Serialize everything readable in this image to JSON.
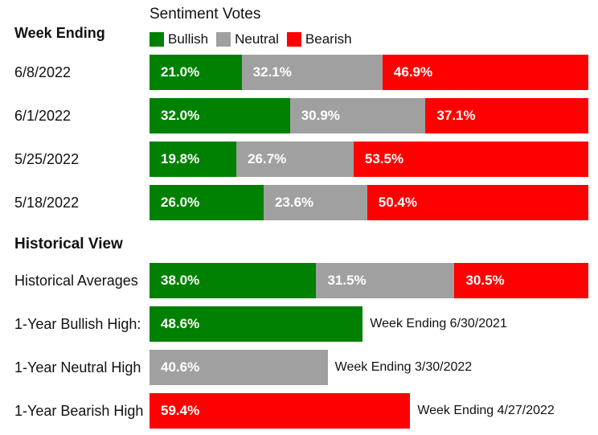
{
  "header": {
    "title": "Sentiment Votes",
    "week_heading": "Week Ending",
    "historical_heading": "Historical View"
  },
  "colors": {
    "bullish": "#008000",
    "neutral": "#a0a0a0",
    "bearish": "#ff0000"
  },
  "legend": [
    {
      "label": "Bullish",
      "color": "#008000"
    },
    {
      "label": "Neutral",
      "color": "#a0a0a0"
    },
    {
      "label": "Bearish",
      "color": "#ff0000"
    }
  ],
  "chart_data": {
    "type": "bar",
    "orientation": "horizontal",
    "stacked": true,
    "title": "Sentiment Votes",
    "legend_position": "top",
    "series_names": [
      "Bullish",
      "Neutral",
      "Bearish"
    ],
    "weekly": [
      {
        "label": "6/8/2022",
        "values": [
          21.0,
          32.1,
          46.9
        ],
        "labels": [
          "21.0%",
          "32.1%",
          "46.9%"
        ]
      },
      {
        "label": "6/1/2022",
        "values": [
          32.0,
          30.9,
          37.1
        ],
        "labels": [
          "32.0%",
          "30.9%",
          "37.1%"
        ]
      },
      {
        "label": "5/25/2022",
        "values": [
          19.8,
          26.7,
          53.5
        ],
        "labels": [
          "19.8%",
          "26.7%",
          "53.5%"
        ]
      },
      {
        "label": "5/18/2022",
        "values": [
          26.0,
          23.6,
          50.4
        ],
        "labels": [
          "26.0%",
          "23.6%",
          "50.4%"
        ]
      }
    ],
    "historical_average": {
      "label": "Historical Averages",
      "values": [
        38.0,
        31.5,
        30.5
      ],
      "labels": [
        "38.0%",
        "31.5%",
        "30.5%"
      ]
    },
    "highs": [
      {
        "label": "1-Year Bullish High:",
        "series": "Bullish",
        "value": 48.6,
        "value_label": "48.6%",
        "note": "Week Ending 6/30/2021"
      },
      {
        "label": "1-Year Neutral High",
        "series": "Neutral",
        "value": 40.6,
        "value_label": "40.6%",
        "note": "Week Ending 3/30/2022"
      },
      {
        "label": "1-Year Bearish High",
        "series": "Bearish",
        "value": 59.4,
        "value_label": "59.4%",
        "note": "Week Ending 4/27/2022"
      }
    ]
  }
}
